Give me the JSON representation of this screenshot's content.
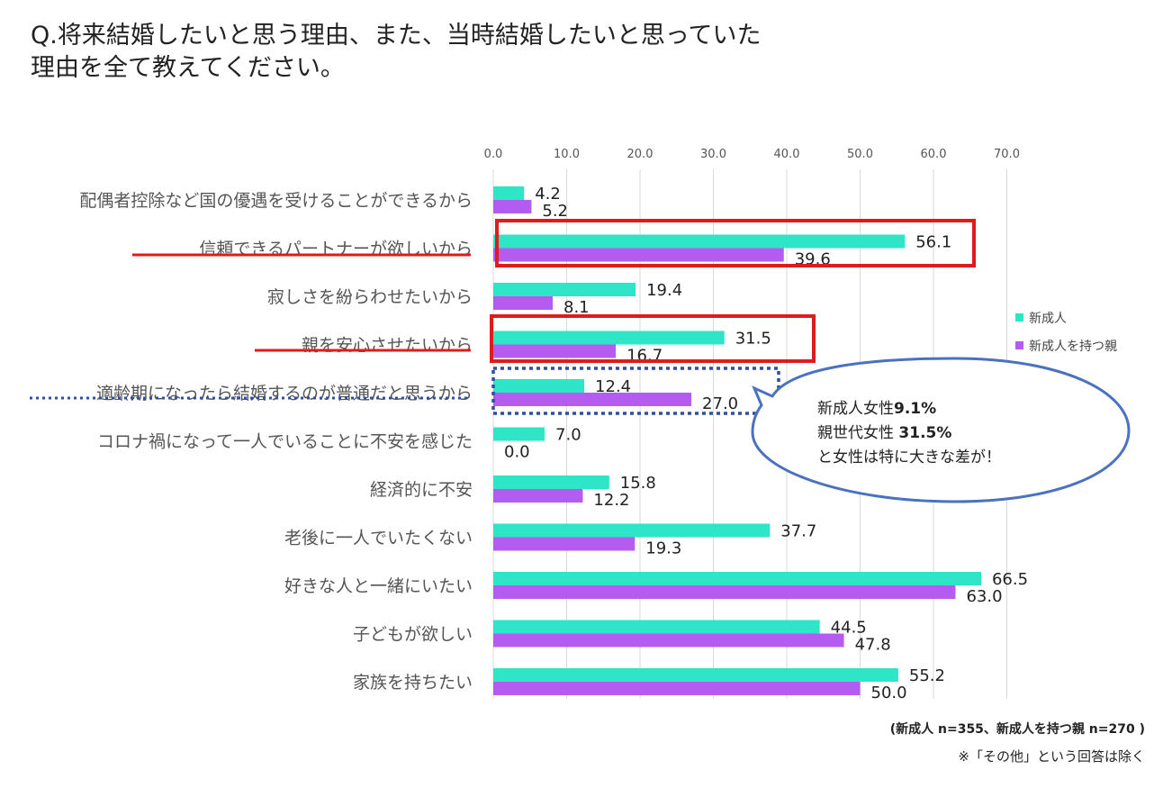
{
  "title": {
    "line1": "Q.将来結婚したいと思う理由、また、当時結婚したいと思っていた",
    "line2": "理由を全て教えてください。"
  },
  "colors": {
    "series1": "#2EE6C7",
    "series2": "#B45CF0",
    "highlight_box": "#E01B1B",
    "dotted_box": "#2F4FA0",
    "callout": "#4A72C0",
    "grid": "#D9D9D9"
  },
  "chart_data": {
    "type": "bar",
    "orientation": "horizontal",
    "xlim": [
      0,
      70
    ],
    "xticks": [
      "0.0",
      "10.0",
      "20.0",
      "30.0",
      "40.0",
      "50.0",
      "60.0",
      "70.0"
    ],
    "grid": true,
    "legend_position": "right",
    "categories": [
      "配偶者控除など国の優遇を受けることができるから",
      "信頼できるパートナーが欲しいから",
      "寂しさを紛らわせたいから",
      "親を安心させたいから",
      "適齢期になったら結婚するのが普通だと思うから",
      "コロナ禍になって一人でいることに不安を感じた",
      "経済的に不安",
      "老後に一人でいたくない",
      "好きな人と一緒にいたい",
      "子どもが欲しい",
      "家族を持ちたい"
    ],
    "series": [
      {
        "name": "新成人",
        "values": [
          4.2,
          56.1,
          19.4,
          31.5,
          12.4,
          7.0,
          15.8,
          37.7,
          66.5,
          44.5,
          55.2
        ],
        "labels": [
          "4.2",
          "56.1",
          "19.4",
          "31.5",
          "12.4",
          "7.0",
          "15.8",
          "37.7",
          "66.5",
          "44.5",
          "55.2"
        ]
      },
      {
        "name": "新成人を持つ親",
        "values": [
          5.2,
          39.6,
          8.1,
          16.7,
          27.0,
          0.0,
          12.2,
          19.3,
          63.0,
          47.8,
          50.0
        ],
        "labels": [
          "5.2",
          "39.6",
          "8.1",
          "16.7",
          "27.0",
          "0.0",
          "12.2",
          "19.3",
          "63.0",
          "47.8",
          "50.0"
        ]
      }
    ],
    "annotations": {
      "red_boxed_categories": [
        1,
        3
      ],
      "dotted_boxed_categories": [
        4
      ],
      "callout": {
        "line1_text": "新成人女性",
        "line1_value": "9.1%",
        "line2_text": "親世代女性 ",
        "line2_value": "31.5%",
        "line3": "と女性は特に大きな差が！"
      }
    }
  },
  "footer": {
    "sample": "(新成人 n=355、新成人を持つ親 n=270 )",
    "note": "※「その他」という回答は除く"
  }
}
